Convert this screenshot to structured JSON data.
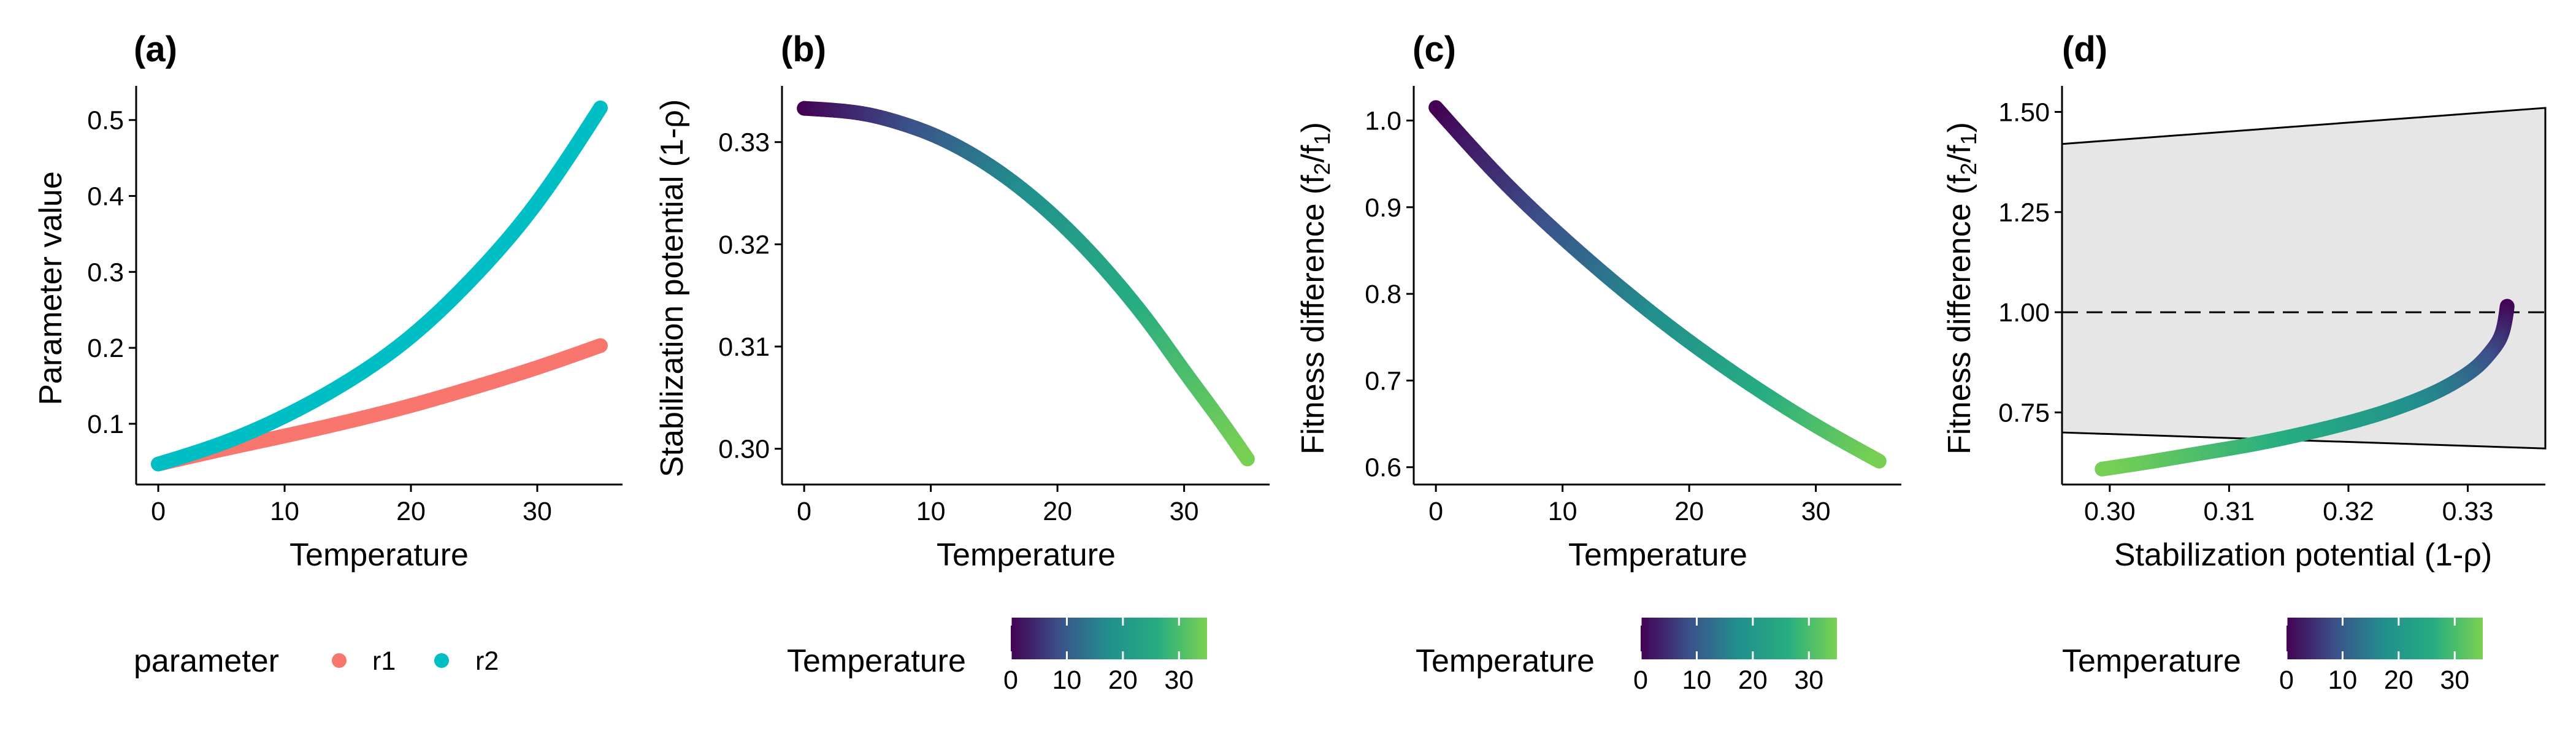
{
  "chart_data": [
    {
      "id": "a",
      "panel_label": "(a)",
      "type": "line",
      "xlabel": "Temperature",
      "ylabel": "Parameter value",
      "xlim": [
        -1.75,
        36.75
      ],
      "ylim": [
        0.02,
        0.545
      ],
      "xticks": [
        0,
        10,
        20,
        30
      ],
      "yticks": [
        0.1,
        0.2,
        0.3,
        0.4,
        0.5
      ],
      "x": [
        0,
        5,
        10,
        15,
        20,
        25,
        30,
        35
      ],
      "series": [
        {
          "name": "r1",
          "color": "#f8766d",
          "values": [
            0.047,
            0.066,
            0.084,
            0.103,
            0.124,
            0.148,
            0.174,
            0.203
          ]
        },
        {
          "name": "r2",
          "color": "#00bfc4",
          "values": [
            0.047,
            0.074,
            0.11,
            0.156,
            0.215,
            0.294,
            0.392,
            0.516
          ]
        }
      ],
      "legend": {
        "title": "parameter",
        "position": "bottom",
        "entries": [
          "r1",
          "r2"
        ]
      }
    },
    {
      "id": "b",
      "panel_label": "(b)",
      "type": "line",
      "xlabel": "Temperature",
      "ylabel": "Stabilization potential (1-ρ)",
      "xlim": [
        -1.75,
        36.75
      ],
      "ylim": [
        0.2965,
        0.3355
      ],
      "xticks": [
        0,
        10,
        20,
        30
      ],
      "yticks": [
        0.3,
        0.31,
        0.32,
        0.33
      ],
      "x": [
        0,
        2.5,
        5,
        7.5,
        10,
        12.5,
        15,
        17.5,
        20,
        22.5,
        25,
        27.5,
        30,
        32.5,
        35
      ],
      "values": [
        0.3333,
        0.3331,
        0.3327,
        0.3319,
        0.3308,
        0.3293,
        0.3274,
        0.3251,
        0.3224,
        0.3193,
        0.3158,
        0.3119,
        0.3076,
        0.3034,
        0.299
      ],
      "colorbar": {
        "title": "Temperature",
        "range": [
          0,
          35
        ],
        "ticks": [
          0,
          10,
          20,
          30
        ]
      }
    },
    {
      "id": "c",
      "panel_label": "(c)",
      "type": "line",
      "xlabel": "Temperature",
      "ylabel_main": "Fitness difference (f",
      "ylabel_sub1": "2",
      "ylabel_mid": "/f",
      "ylabel_sub2": "1",
      "ylabel_end": ")",
      "xlim": [
        -1.75,
        36.75
      ],
      "ylim": [
        0.58,
        1.04
      ],
      "xticks": [
        0,
        10,
        20,
        30
      ],
      "yticks": [
        0.6,
        0.7,
        0.8,
        0.9,
        1.0
      ],
      "x": [
        0,
        5,
        10,
        15,
        20,
        25,
        30,
        35
      ],
      "values": [
        1.015,
        0.935,
        0.865,
        0.802,
        0.745,
        0.694,
        0.648,
        0.607
      ],
      "colorbar": {
        "title": "Temperature",
        "range": [
          0,
          35
        ],
        "ticks": [
          0,
          10,
          20,
          30
        ]
      }
    },
    {
      "id": "d",
      "panel_label": "(d)",
      "type": "line",
      "xlabel": "Stabilization potential (1-ρ)",
      "ylabel_main": "Fitness difference (f",
      "ylabel_sub1": "2",
      "ylabel_mid": "/f",
      "ylabel_sub2": "1",
      "ylabel_end": ")",
      "xlim": [
        0.296,
        0.3365
      ],
      "ylim": [
        0.57,
        1.565
      ],
      "xticks": [
        0.3,
        0.31,
        0.32,
        0.33
      ],
      "yticks": [
        0.75,
        1.0,
        1.25,
        1.5
      ],
      "xtick_labels": [
        "0.30",
        "0.31",
        "0.32",
        "0.33"
      ],
      "ytick_labels": [
        "0.75",
        "1.00",
        "1.25",
        "1.50"
      ],
      "temperature": [
        0,
        2.5,
        5,
        7.5,
        10,
        12.5,
        15,
        17.5,
        20,
        22.5,
        25,
        27.5,
        30,
        32.5,
        35
      ],
      "x": [
        0.3333,
        0.3331,
        0.3327,
        0.3319,
        0.3308,
        0.3293,
        0.3274,
        0.3251,
        0.3224,
        0.3193,
        0.3158,
        0.3119,
        0.3076,
        0.3034,
        0.299
      ],
      "values": [
        1.015,
        0.975,
        0.935,
        0.9,
        0.865,
        0.833,
        0.802,
        0.773,
        0.745,
        0.719,
        0.694,
        0.67,
        0.648,
        0.627,
        0.607
      ],
      "coexistence_region": {
        "x": [
          0.296,
          0.3365
        ],
        "upper": [
          1.42,
          1.51
        ],
        "lower": [
          0.7,
          0.66
        ],
        "fill": "#e6e6e6"
      },
      "reference_line": {
        "y": 1.0,
        "style": "dashed"
      },
      "colorbar": {
        "title": "Temperature",
        "range": [
          0,
          35
        ],
        "ticks": [
          0,
          10,
          20,
          30
        ]
      }
    }
  ],
  "colors": {
    "viridis_low": "#440154",
    "viridis_high": "#7ad151",
    "r1": "#f8766d",
    "r2": "#00bfc4",
    "region_fill": "#e6e6e6"
  }
}
